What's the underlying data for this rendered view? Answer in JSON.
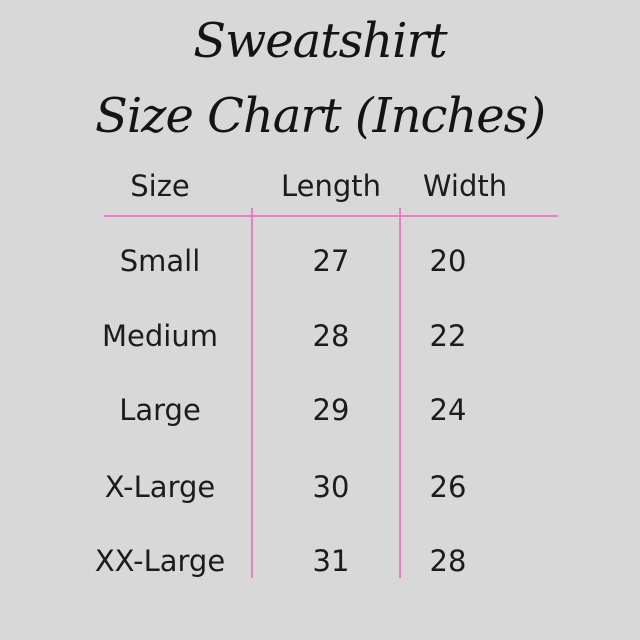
{
  "background_color": "#d8d8d8",
  "accent_color": "#ee7cc0",
  "text_color": "#1c1c1c",
  "title": {
    "line1": "Sweatshirt",
    "line2": "Size Chart (Inches)"
  },
  "table": {
    "columns": [
      "Size",
      "Length",
      "Width"
    ],
    "rows": [
      {
        "size": "Small",
        "length": "27",
        "width": "20"
      },
      {
        "size": "Medium",
        "length": "28",
        "width": "22"
      },
      {
        "size": "Large",
        "length": "29",
        "width": "24"
      },
      {
        "size": "X-Large",
        "length": "30",
        "width": "26"
      },
      {
        "size": "XX-Large",
        "length": "31",
        "width": "28"
      }
    ]
  },
  "chart_data": {
    "type": "table",
    "title": "Sweatshirt Size Chart (Inches)",
    "columns": [
      "Size",
      "Length",
      "Width"
    ],
    "rows": [
      [
        "Small",
        27,
        20
      ],
      [
        "Medium",
        28,
        22
      ],
      [
        "Large",
        29,
        24
      ],
      [
        "X-Large",
        30,
        26
      ],
      [
        "XX-Large",
        31,
        28
      ]
    ],
    "units": "inches"
  }
}
